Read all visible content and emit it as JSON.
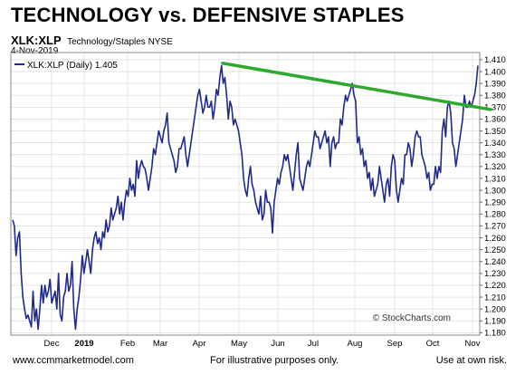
{
  "header": {
    "title": "TECHNOLOGY vs. DEFENSIVE STAPLES",
    "symbol": "XLK:XLP",
    "description": "Technology/Staples NYSE",
    "date": "4-Nov-2019"
  },
  "footer": {
    "left": "www.ccmmarketmodel.com",
    "middle": "For illustrative purposes only.",
    "right": "Use at own risk."
  },
  "colors": {
    "price_line": "#1f2a8a",
    "trendline": "#2ea82e",
    "grid": "#d9d9d9",
    "frame": "#888888"
  },
  "chart_data": {
    "type": "line",
    "legend_label": "XLK:XLP (Daily) 1.405",
    "legend_position": "top-left",
    "watermark": "© StockCharts.com",
    "x_tick_labels": [
      "Dec",
      "2019",
      "Feb",
      "Mar",
      "Apr",
      "May",
      "Jun",
      "Jul",
      "Aug",
      "Sep",
      "Oct",
      "Nov"
    ],
    "y_ticks": [
      1.18,
      1.19,
      1.2,
      1.21,
      1.22,
      1.23,
      1.24,
      1.25,
      1.26,
      1.27,
      1.28,
      1.29,
      1.3,
      1.31,
      1.32,
      1.33,
      1.34,
      1.35,
      1.36,
      1.37,
      1.38,
      1.39,
      1.4,
      1.41
    ],
    "ylim": [
      1.178,
      1.416
    ],
    "y_axis_side": "right",
    "grid": true,
    "series": [
      {
        "values": [
          1.275,
          1.27,
          1.245,
          1.26,
          1.265,
          1.23,
          1.21,
          1.2,
          1.192,
          1.195,
          1.19,
          1.185,
          1.215,
          1.19,
          1.2,
          1.183,
          1.2,
          1.22,
          1.205,
          1.22,
          1.21,
          1.215,
          1.225,
          1.205,
          1.21,
          1.215,
          1.2,
          1.23,
          1.195,
          1.19,
          1.21,
          1.215,
          1.23,
          1.215,
          1.22,
          1.24,
          1.2,
          1.183,
          1.2,
          1.21,
          1.225,
          1.245,
          1.23,
          1.24,
          1.25,
          1.24,
          1.23,
          1.25,
          1.26,
          1.265,
          1.255,
          1.26,
          1.25,
          1.265,
          1.26,
          1.275,
          1.265,
          1.27,
          1.285,
          1.275,
          1.28,
          1.285,
          1.295,
          1.28,
          1.29,
          1.275,
          1.29,
          1.3,
          1.295,
          1.31,
          1.3,
          1.305,
          1.295,
          1.325,
          1.31,
          1.32,
          1.325,
          1.32,
          1.318,
          1.31,
          1.3,
          1.31,
          1.32,
          1.335,
          1.33,
          1.34,
          1.35,
          1.345,
          1.34,
          1.35,
          1.355,
          1.365,
          1.34,
          1.335,
          1.33,
          1.325,
          1.315,
          1.32,
          1.335,
          1.335,
          1.34,
          1.345,
          1.33,
          1.32,
          1.33,
          1.34,
          1.35,
          1.36,
          1.37,
          1.38,
          1.385,
          1.375,
          1.365,
          1.37,
          1.38,
          1.37,
          1.37,
          1.375,
          1.36,
          1.37,
          1.385,
          1.38,
          1.395,
          1.405,
          1.39,
          1.395,
          1.38,
          1.36,
          1.375,
          1.37,
          1.355,
          1.36,
          1.355,
          1.35,
          1.34,
          1.33,
          1.31,
          1.3,
          1.295,
          1.31,
          1.32,
          1.305,
          1.3,
          1.29,
          1.285,
          1.28,
          1.295,
          1.275,
          1.28,
          1.3,
          1.29,
          1.29,
          1.285,
          1.264,
          1.29,
          1.3,
          1.31,
          1.305,
          1.315,
          1.32,
          1.33,
          1.325,
          1.33,
          1.32,
          1.31,
          1.3,
          1.315,
          1.33,
          1.34,
          1.31,
          1.305,
          1.3,
          1.31,
          1.32,
          1.325,
          1.32,
          1.33,
          1.34,
          1.35,
          1.345,
          1.345,
          1.335,
          1.34,
          1.345,
          1.35,
          1.34,
          1.345,
          1.32,
          1.34,
          1.345,
          1.335,
          1.34,
          1.34,
          1.36,
          1.355,
          1.37,
          1.38,
          1.375,
          1.38,
          1.385,
          1.39,
          1.38,
          1.375,
          1.34,
          1.345,
          1.33,
          1.335,
          1.32,
          1.325,
          1.31,
          1.315,
          1.3,
          1.31,
          1.295,
          1.3,
          1.305,
          1.32,
          1.31,
          1.3,
          1.29,
          1.305,
          1.31,
          1.295,
          1.32,
          1.33,
          1.325,
          1.3,
          1.29,
          1.3,
          1.31,
          1.305,
          1.33,
          1.33,
          1.34,
          1.335,
          1.32,
          1.33,
          1.345,
          1.35,
          1.345,
          1.345,
          1.33,
          1.325,
          1.32,
          1.31,
          1.315,
          1.3,
          1.305,
          1.305,
          1.32,
          1.31,
          1.32,
          1.315,
          1.35,
          1.36,
          1.345,
          1.37,
          1.375,
          1.365,
          1.34,
          1.335,
          1.32,
          1.33,
          1.34,
          1.35,
          1.36,
          1.38,
          1.37,
          1.37,
          1.375,
          1.37,
          1.375,
          1.38,
          1.39,
          1.405
        ]
      }
    ],
    "trendline": {
      "start_value": 1.407,
      "end_value": 1.368
    }
  }
}
